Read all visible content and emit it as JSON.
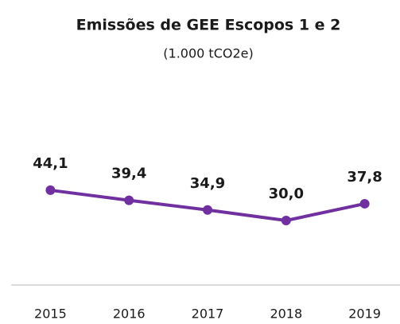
{
  "chart_data": {
    "type": "line",
    "title": "Emissões de GEE Escopos 1 e 2",
    "subtitle": "(1.000 tCO2e)",
    "categories": [
      "2015",
      "2016",
      "2017",
      "2018",
      "2019"
    ],
    "values": [
      44.1,
      39.4,
      34.9,
      30.0,
      37.8
    ],
    "value_labels": [
      "44,1",
      "39,4",
      "34,9",
      "30,0",
      "37,8"
    ],
    "color": "#7030a0",
    "ylim": [
      0,
      100
    ]
  }
}
